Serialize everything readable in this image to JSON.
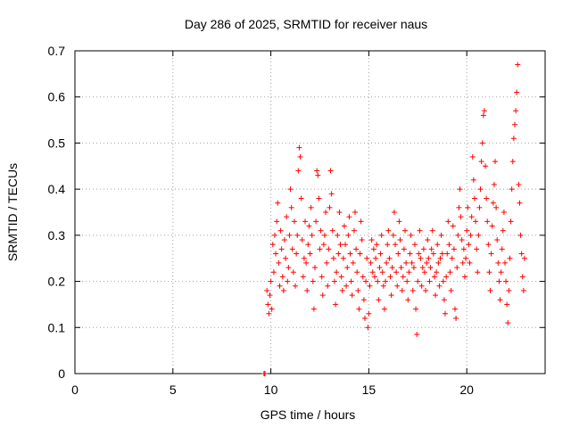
{
  "chart_data": {
    "type": "scatter",
    "title": "Day 286 of 2025, SRMTID for receiver naus",
    "xlabel": "GPS time / hours",
    "ylabel": "SRMTID / TECUs",
    "xlim": [
      0,
      24
    ],
    "ylim": [
      0,
      0.7
    ],
    "xticks": [
      0,
      5,
      10,
      15,
      20
    ],
    "xtick_labels": [
      "0",
      "5",
      "10",
      "15",
      "20"
    ],
    "yticks": [
      0,
      0.1,
      0.2,
      0.3,
      0.4,
      0.5,
      0.6,
      0.7
    ],
    "ytick_labels": [
      "0",
      "0.1",
      "0.2",
      "0.3",
      "0.4",
      "0.5",
      "0.6",
      "0.7"
    ],
    "grid": true,
    "marker": "+",
    "color": "#ff0000",
    "series": [
      {
        "name": "SRMTID",
        "points": [
          [
            9.65,
            0.0
          ],
          [
            9.7,
            0.0
          ],
          [
            9.8,
            0.18
          ],
          [
            9.85,
            0.15
          ],
          [
            9.9,
            0.13
          ],
          [
            9.95,
            0.17
          ],
          [
            10.0,
            0.2
          ],
          [
            10.05,
            0.14
          ],
          [
            10.1,
            0.28
          ],
          [
            10.15,
            0.22
          ],
          [
            10.2,
            0.3
          ],
          [
            10.25,
            0.26
          ],
          [
            10.3,
            0.33
          ],
          [
            10.35,
            0.37
          ],
          [
            10.4,
            0.24
          ],
          [
            10.45,
            0.19
          ],
          [
            10.5,
            0.31
          ],
          [
            10.55,
            0.27
          ],
          [
            10.6,
            0.21
          ],
          [
            10.65,
            0.18
          ],
          [
            10.7,
            0.29
          ],
          [
            10.75,
            0.25
          ],
          [
            10.8,
            0.34
          ],
          [
            10.85,
            0.2
          ],
          [
            10.9,
            0.23
          ],
          [
            10.95,
            0.3
          ],
          [
            11.0,
            0.4
          ],
          [
            11.05,
            0.36
          ],
          [
            11.1,
            0.27
          ],
          [
            11.15,
            0.22
          ],
          [
            11.2,
            0.33
          ],
          [
            11.25,
            0.19
          ],
          [
            11.3,
            0.26
          ],
          [
            11.35,
            0.3
          ],
          [
            11.4,
            0.44
          ],
          [
            11.45,
            0.49
          ],
          [
            11.5,
            0.47
          ],
          [
            11.55,
            0.38
          ],
          [
            11.6,
            0.29
          ],
          [
            11.65,
            0.21
          ],
          [
            11.7,
            0.25
          ],
          [
            11.75,
            0.33
          ],
          [
            11.8,
            0.24
          ],
          [
            11.85,
            0.18
          ],
          [
            11.9,
            0.28
          ],
          [
            11.95,
            0.32
          ],
          [
            12.0,
            0.26
          ],
          [
            12.05,
            0.36
          ],
          [
            12.1,
            0.3
          ],
          [
            12.15,
            0.2
          ],
          [
            12.2,
            0.14
          ],
          [
            12.25,
            0.23
          ],
          [
            12.3,
            0.33
          ],
          [
            12.35,
            0.44
          ],
          [
            12.4,
            0.43
          ],
          [
            12.45,
            0.38
          ],
          [
            12.5,
            0.27
          ],
          [
            12.55,
            0.31
          ],
          [
            12.6,
            0.21
          ],
          [
            12.65,
            0.17
          ],
          [
            12.7,
            0.28
          ],
          [
            12.75,
            0.3
          ],
          [
            12.8,
            0.35
          ],
          [
            12.85,
            0.24
          ],
          [
            12.9,
            0.19
          ],
          [
            12.95,
            0.27
          ],
          [
            13.0,
            0.36
          ],
          [
            13.05,
            0.44
          ],
          [
            13.1,
            0.39
          ],
          [
            13.15,
            0.31
          ],
          [
            13.2,
            0.25
          ],
          [
            13.25,
            0.2
          ],
          [
            13.3,
            0.15
          ],
          [
            13.35,
            0.22
          ],
          [
            13.4,
            0.3
          ],
          [
            13.45,
            0.26
          ],
          [
            13.5,
            0.35
          ],
          [
            13.55,
            0.28
          ],
          [
            13.6,
            0.21
          ],
          [
            13.65,
            0.18
          ],
          [
            13.7,
            0.25
          ],
          [
            13.75,
            0.32
          ],
          [
            13.8,
            0.28
          ],
          [
            13.85,
            0.19
          ],
          [
            13.9,
            0.23
          ],
          [
            13.95,
            0.3
          ],
          [
            14.0,
            0.34
          ],
          [
            14.05,
            0.26
          ],
          [
            14.1,
            0.2
          ],
          [
            14.15,
            0.17
          ],
          [
            14.2,
            0.24
          ],
          [
            14.25,
            0.31
          ],
          [
            14.3,
            0.35
          ],
          [
            14.35,
            0.27
          ],
          [
            14.4,
            0.22
          ],
          [
            14.45,
            0.18
          ],
          [
            14.5,
            0.14
          ],
          [
            14.55,
            0.26
          ],
          [
            14.6,
            0.33
          ],
          [
            14.65,
            0.29
          ],
          [
            14.7,
            0.21
          ],
          [
            14.75,
            0.16
          ],
          [
            14.8,
            0.12
          ],
          [
            14.85,
            0.2
          ],
          [
            14.9,
            0.25
          ],
          [
            14.95,
            0.1
          ],
          [
            15.0,
            0.13
          ],
          [
            15.05,
            0.19
          ],
          [
            15.1,
            0.24
          ],
          [
            15.15,
            0.29
          ],
          [
            15.2,
            0.22
          ],
          [
            15.25,
            0.27
          ],
          [
            15.3,
            0.21
          ],
          [
            15.35,
            0.25
          ],
          [
            15.4,
            0.28
          ],
          [
            15.45,
            0.2
          ],
          [
            15.5,
            0.16
          ],
          [
            15.55,
            0.23
          ],
          [
            15.6,
            0.26
          ],
          [
            15.65,
            0.3
          ],
          [
            15.7,
            0.22
          ],
          [
            15.75,
            0.19
          ],
          [
            15.8,
            0.14
          ],
          [
            15.85,
            0.2
          ],
          [
            15.9,
            0.24
          ],
          [
            15.95,
            0.28
          ],
          [
            16.0,
            0.31
          ],
          [
            16.05,
            0.25
          ],
          [
            16.1,
            0.21
          ],
          [
            16.15,
            0.17
          ],
          [
            16.2,
            0.23
          ],
          [
            16.25,
            0.3
          ],
          [
            16.3,
            0.35
          ],
          [
            16.35,
            0.28
          ],
          [
            16.4,
            0.22
          ],
          [
            16.45,
            0.19
          ],
          [
            16.5,
            0.26
          ],
          [
            16.55,
            0.33
          ],
          [
            16.6,
            0.29
          ],
          [
            16.65,
            0.23
          ],
          [
            16.7,
            0.18
          ],
          [
            16.75,
            0.21
          ],
          [
            16.8,
            0.27
          ],
          [
            16.85,
            0.31
          ],
          [
            16.9,
            0.24
          ],
          [
            16.95,
            0.2
          ],
          [
            17.0,
            0.16
          ],
          [
            17.05,
            0.22
          ],
          [
            17.1,
            0.26
          ],
          [
            17.15,
            0.3
          ],
          [
            17.2,
            0.24
          ],
          [
            17.25,
            0.18
          ],
          [
            17.3,
            0.23
          ],
          [
            17.35,
            0.28
          ],
          [
            17.4,
            0.14
          ],
          [
            17.45,
            0.085
          ],
          [
            17.5,
            0.2
          ],
          [
            17.55,
            0.26
          ],
          [
            17.6,
            0.31
          ],
          [
            17.65,
            0.25
          ],
          [
            17.7,
            0.19
          ],
          [
            17.75,
            0.23
          ],
          [
            17.8,
            0.27
          ],
          [
            17.85,
            0.22
          ],
          [
            17.9,
            0.18
          ],
          [
            17.95,
            0.24
          ],
          [
            18.0,
            0.29
          ],
          [
            18.05,
            0.25
          ],
          [
            18.1,
            0.2
          ],
          [
            18.15,
            0.23
          ],
          [
            18.2,
            0.27
          ],
          [
            18.25,
            0.31
          ],
          [
            18.3,
            0.26
          ],
          [
            18.35,
            0.21
          ],
          [
            18.4,
            0.17
          ],
          [
            18.45,
            0.22
          ],
          [
            18.5,
            0.28
          ],
          [
            18.55,
            0.24
          ],
          [
            18.6,
            0.19
          ],
          [
            18.65,
            0.25
          ],
          [
            18.7,
            0.3
          ],
          [
            18.75,
            0.26
          ],
          [
            18.8,
            0.2
          ],
          [
            18.85,
            0.16
          ],
          [
            18.9,
            0.13
          ],
          [
            18.95,
            0.21
          ],
          [
            19.0,
            0.26
          ],
          [
            19.05,
            0.33
          ],
          [
            19.1,
            0.28
          ],
          [
            19.15,
            0.22
          ],
          [
            19.2,
            0.18
          ],
          [
            19.25,
            0.25
          ],
          [
            19.3,
            0.32
          ],
          [
            19.35,
            0.27
          ],
          [
            19.4,
            0.14
          ],
          [
            19.45,
            0.12
          ],
          [
            19.5,
            0.23
          ],
          [
            19.55,
            0.3
          ],
          [
            19.6,
            0.36
          ],
          [
            19.65,
            0.4
          ],
          [
            19.7,
            0.34
          ],
          [
            19.75,
            0.29
          ],
          [
            19.8,
            0.24
          ],
          [
            19.85,
            0.27
          ],
          [
            19.9,
            0.21
          ],
          [
            19.95,
            0.25
          ],
          [
            20.0,
            0.31
          ],
          [
            20.05,
            0.36
          ],
          [
            20.1,
            0.28
          ],
          [
            20.15,
            0.24
          ],
          [
            20.2,
            0.3
          ],
          [
            20.25,
            0.34
          ],
          [
            20.3,
            0.47
          ],
          [
            20.35,
            0.42
          ],
          [
            20.4,
            0.38
          ],
          [
            20.45,
            0.33
          ],
          [
            20.5,
            0.27
          ],
          [
            20.55,
            0.22
          ],
          [
            20.6,
            0.3
          ],
          [
            20.65,
            0.36
          ],
          [
            20.7,
            0.4
          ],
          [
            20.75,
            0.46
          ],
          [
            20.8,
            0.5
          ],
          [
            20.85,
            0.56
          ],
          [
            20.9,
            0.57
          ],
          [
            20.95,
            0.45
          ],
          [
            21.0,
            0.38
          ],
          [
            21.05,
            0.33
          ],
          [
            21.1,
            0.28
          ],
          [
            21.15,
            0.22
          ],
          [
            21.2,
            0.18
          ],
          [
            21.25,
            0.26
          ],
          [
            21.3,
            0.32
          ],
          [
            21.35,
            0.37
          ],
          [
            21.4,
            0.41
          ],
          [
            21.45,
            0.46
          ],
          [
            21.5,
            0.36
          ],
          [
            21.55,
            0.29
          ],
          [
            21.6,
            0.24
          ],
          [
            21.65,
            0.2
          ],
          [
            21.7,
            0.16
          ],
          [
            21.75,
            0.22
          ],
          [
            21.8,
            0.27
          ],
          [
            21.85,
            0.31
          ],
          [
            21.9,
            0.35
          ],
          [
            21.95,
            0.24
          ],
          [
            22.0,
            0.2
          ],
          [
            22.05,
            0.15
          ],
          [
            22.1,
            0.11
          ],
          [
            22.15,
            0.18
          ],
          [
            22.2,
            0.25
          ],
          [
            22.25,
            0.33
          ],
          [
            22.3,
            0.4
          ],
          [
            22.35,
            0.46
          ],
          [
            22.4,
            0.51
          ],
          [
            22.45,
            0.54
          ],
          [
            22.5,
            0.57
          ],
          [
            22.55,
            0.61
          ],
          [
            22.6,
            0.67
          ],
          [
            22.65,
            0.41
          ],
          [
            22.7,
            0.37
          ],
          [
            22.75,
            0.3
          ],
          [
            22.8,
            0.26
          ],
          [
            22.85,
            0.21
          ],
          [
            22.9,
            0.18
          ],
          [
            22.95,
            0.25
          ]
        ]
      }
    ]
  }
}
